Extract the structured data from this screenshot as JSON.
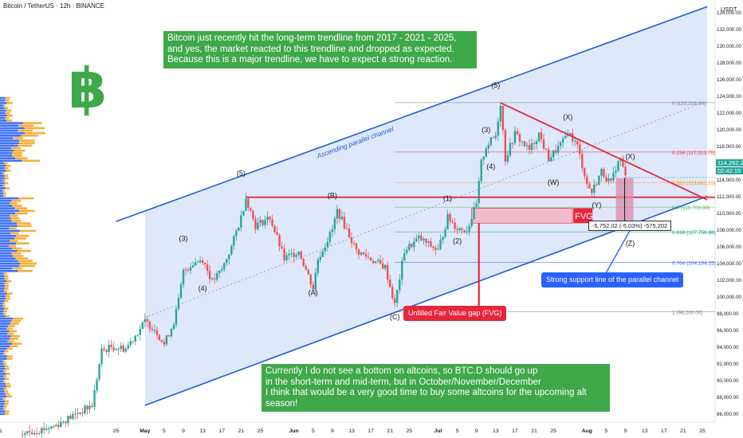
{
  "header": {
    "title": "Bitcoin / TetherUS · 12h · BINANCE",
    "currency": "USDT"
  },
  "price_tags": {
    "last": "114,262.22",
    "countdown": "02:42:15"
  },
  "notes": {
    "top": "Bitcoin just recently hit the long-term trendline from 2017 - 2021 - 2025, and yes, the market reacted to this trendline and dropped as expected. Because this is a major trendline, we have to expect a strong reaction.",
    "bottom_lines": [
      "Currently I do not see a bottom on altcoins, so BTC.D should go up",
      "in the short-term and mid-term, but in October/November/December",
      "I think that would be a very good time to buy some altcoins for the upcoming alt season!"
    ],
    "support": "Strong support line of the parallel channel",
    "fvg_callout": "Unfilled Fair Value gap (FVG)"
  },
  "ruler_label": "-5,752.02 (-5.03%) -575,202",
  "colors": {
    "up": "#26a69a",
    "down": "#ef5350",
    "channel": "#1e5fd6",
    "channel_fill": "#dbe6fb",
    "note_green": "#3fa84a",
    "red_line": "#e6263c",
    "fvg_fill": "#f3b5c3",
    "volume_orange": "#f5a623",
    "volume_blue": "#2962ff",
    "btc_logo": "#3fa84a"
  },
  "chart_data": {
    "type": "candlestick",
    "title": "Bitcoin / TetherUS · 12h · BINANCE",
    "ylabel": "USDT",
    "ylim": [
      85000,
      135500
    ],
    "y_ticks": [
      86000,
      88000,
      90000,
      92000,
      94000,
      96000,
      98000,
      100000,
      102000,
      104000,
      106000,
      108000,
      110000,
      112000,
      114000,
      116000,
      118000,
      120000,
      122000,
      124000,
      126000,
      128000,
      130000,
      132000,
      134000
    ],
    "y_tick_labels": [
      "86,000.00",
      "88,000.00",
      "90,000.00",
      "92,000.00",
      "94,000.00",
      "96,000.00",
      "98,000.00",
      "100,000.00",
      "102,000.00",
      "104,000.00",
      "106,000.00",
      "108,000.00",
      "110,000.00",
      "112,000.00",
      "114,000.00",
      "116,000.00",
      "118,000.00",
      "120,000.00",
      "122,000.00",
      "124,000.00",
      "126,000.00",
      "128,000.00",
      "130,000.00",
      "132,000.00",
      "134,000.00"
    ],
    "x_range": [
      "2025-04-01",
      "2025-08-26"
    ],
    "x_ticks": [
      {
        "date": "2025-04-01",
        "label": "1"
      },
      {
        "date": "2025-04-25",
        "label": "25"
      },
      {
        "date": "2025-05-01",
        "label": "May"
      },
      {
        "date": "2025-05-05",
        "label": "5"
      },
      {
        "date": "2025-05-09",
        "label": "9"
      },
      {
        "date": "2025-05-13",
        "label": "13"
      },
      {
        "date": "2025-05-17",
        "label": "17"
      },
      {
        "date": "2025-05-21",
        "label": "21"
      },
      {
        "date": "2025-05-25",
        "label": "25"
      },
      {
        "date": "2025-06-01",
        "label": "Jun"
      },
      {
        "date": "2025-06-05",
        "label": "5"
      },
      {
        "date": "2025-06-09",
        "label": "9"
      },
      {
        "date": "2025-06-13",
        "label": "13"
      },
      {
        "date": "2025-06-17",
        "label": "17"
      },
      {
        "date": "2025-06-21",
        "label": "21"
      },
      {
        "date": "2025-06-25",
        "label": "25"
      },
      {
        "date": "2025-07-01",
        "label": "Jul"
      },
      {
        "date": "2025-07-05",
        "label": "5"
      },
      {
        "date": "2025-07-09",
        "label": "9"
      },
      {
        "date": "2025-07-13",
        "label": "13"
      },
      {
        "date": "2025-07-17",
        "label": "17"
      },
      {
        "date": "2025-07-21",
        "label": "21"
      },
      {
        "date": "2025-07-25",
        "label": "25"
      },
      {
        "date": "2025-08-01",
        "label": "Aug"
      },
      {
        "date": "2025-08-05",
        "label": "5"
      },
      {
        "date": "2025-08-09",
        "label": "9"
      },
      {
        "date": "2025-08-13",
        "label": "13"
      },
      {
        "date": "2025-08-17",
        "label": "17"
      },
      {
        "date": "2025-08-21",
        "label": "21"
      },
      {
        "date": "2025-08-25",
        "label": "25"
      }
    ],
    "price_path": [
      {
        "date": "2025-04-05",
        "price": 83500
      },
      {
        "date": "2025-04-12",
        "price": 84500
      },
      {
        "date": "2025-04-20",
        "price": 87000
      },
      {
        "date": "2025-04-22",
        "price": 93500
      },
      {
        "date": "2025-04-24",
        "price": 94000
      },
      {
        "date": "2025-04-27",
        "price": 93800
      },
      {
        "date": "2025-05-01",
        "price": 97000
      },
      {
        "date": "2025-05-03",
        "price": 96200
      },
      {
        "date": "2025-05-05",
        "price": 94300
      },
      {
        "date": "2025-05-07",
        "price": 97000
      },
      {
        "date": "2025-05-08",
        "price": 99500
      },
      {
        "date": "2025-05-09",
        "price": 103000
      },
      {
        "date": "2025-05-11",
        "price": 104000
      },
      {
        "date": "2025-05-13",
        "price": 104500
      },
      {
        "date": "2025-05-15",
        "price": 101800
      },
      {
        "date": "2025-05-17",
        "price": 103200
      },
      {
        "date": "2025-05-19",
        "price": 106000
      },
      {
        "date": "2025-05-21",
        "price": 109500
      },
      {
        "date": "2025-05-22",
        "price": 111900
      },
      {
        "date": "2025-05-24",
        "price": 108500
      },
      {
        "date": "2025-05-27",
        "price": 109500
      },
      {
        "date": "2025-05-30",
        "price": 104500
      },
      {
        "date": "2025-06-02",
        "price": 105500
      },
      {
        "date": "2025-06-05",
        "price": 101000
      },
      {
        "date": "2025-06-06",
        "price": 104500
      },
      {
        "date": "2025-06-09",
        "price": 108000
      },
      {
        "date": "2025-06-10",
        "price": 110300
      },
      {
        "date": "2025-06-12",
        "price": 108000
      },
      {
        "date": "2025-06-14",
        "price": 105500
      },
      {
        "date": "2025-06-17",
        "price": 104500
      },
      {
        "date": "2025-06-20",
        "price": 103500
      },
      {
        "date": "2025-06-22",
        "price": 99000
      },
      {
        "date": "2025-06-24",
        "price": 105500
      },
      {
        "date": "2025-06-27",
        "price": 107000
      },
      {
        "date": "2025-07-01",
        "price": 105500
      },
      {
        "date": "2025-07-03",
        "price": 109500
      },
      {
        "date": "2025-07-05",
        "price": 108200
      },
      {
        "date": "2025-07-07",
        "price": 108000
      },
      {
        "date": "2025-07-09",
        "price": 111000
      },
      {
        "date": "2025-07-10",
        "price": 116000
      },
      {
        "date": "2025-07-11",
        "price": 118000
      },
      {
        "date": "2025-07-13",
        "price": 119300
      },
      {
        "date": "2025-07-14",
        "price": 123200
      },
      {
        "date": "2025-07-15",
        "price": 116500
      },
      {
        "date": "2025-07-17",
        "price": 119500
      },
      {
        "date": "2025-07-20",
        "price": 117500
      },
      {
        "date": "2025-07-22",
        "price": 119500
      },
      {
        "date": "2025-07-24",
        "price": 116500
      },
      {
        "date": "2025-07-27",
        "price": 118500
      },
      {
        "date": "2025-07-28",
        "price": 119800
      },
      {
        "date": "2025-07-30",
        "price": 118000
      },
      {
        "date": "2025-08-01",
        "price": 113500
      },
      {
        "date": "2025-08-02",
        "price": 112500
      },
      {
        "date": "2025-08-04",
        "price": 115000
      },
      {
        "date": "2025-08-06",
        "price": 113500
      },
      {
        "date": "2025-08-07",
        "price": 115500
      },
      {
        "date": "2025-08-08",
        "price": 116500
      },
      {
        "date": "2025-08-09",
        "price": 114262
      }
    ],
    "channel": {
      "upper": [
        {
          "date": "2025-04-25",
          "price": 109000
        },
        {
          "date": "2025-08-26",
          "price": 134700
        }
      ],
      "lower": [
        {
          "date": "2025-05-01",
          "price": 87000
        },
        {
          "date": "2025-08-26",
          "price": 112000
        }
      ],
      "mid": [
        {
          "date": "2025-05-01",
          "price": 97500
        },
        {
          "date": "2025-08-26",
          "price": 123400
        }
      ],
      "label": "Ascending parallel channel"
    },
    "horizontal_level": {
      "price": 111900,
      "from": "2025-05-22",
      "to": "2025-08-26"
    },
    "descending_trendline": [
      {
        "date": "2025-07-14",
        "price": 123200
      },
      {
        "date": "2025-08-26",
        "price": 111600
      }
    ],
    "fvg": {
      "low": 108800,
      "high": 110600,
      "from": "2025-07-08",
      "to": "2025-07-29",
      "label": "FVG"
    },
    "fib_levels": [
      {
        "ratio": "0",
        "label": "0 (123,218.00)",
        "price": 123218
      },
      {
        "ratio": "0.236",
        "label": "0.236 (117,313.75)",
        "price": 117313.75
      },
      {
        "ratio": "0.382",
        "label": "0.382 (113,661.15)",
        "price": 113661.15
      },
      {
        "ratio": "0.5",
        "label": "0.5 (110,709.00)",
        "price": 110709
      },
      {
        "ratio": "0.618",
        "label": "0.618 (107,756.88)",
        "price": 107756.88
      },
      {
        "ratio": "0.764",
        "label": "0.764 (104,104.25)",
        "price": 104104.25
      },
      {
        "ratio": "1",
        "label": "1 (98,200.00)",
        "price": 98200
      }
    ],
    "wave_labels": [
      {
        "text": "(3)",
        "date": "2025-05-09",
        "price": 106700
      },
      {
        "text": "(4)",
        "date": "2025-05-13",
        "price": 100700
      },
      {
        "text": "(5)",
        "date": "2025-05-21",
        "price": 114500
      },
      {
        "text": "(B)",
        "date": "2025-06-09",
        "price": 111800
      },
      {
        "text": "(A)",
        "date": "2025-06-05",
        "price": 100200
      },
      {
        "text": "(C)",
        "date": "2025-06-22",
        "price": 97300
      },
      {
        "text": "(1)",
        "date": "2025-07-03",
        "price": 111500
      },
      {
        "text": "(2)",
        "date": "2025-07-05",
        "price": 106400
      },
      {
        "text": "(3)",
        "date": "2025-07-11",
        "price": 119700
      },
      {
        "text": "(4)",
        "date": "2025-07-12",
        "price": 115300
      },
      {
        "text": "(5)",
        "date": "2025-07-13",
        "price": 125000
      },
      {
        "text": "(X)",
        "date": "2025-07-28",
        "price": 121200
      },
      {
        "text": "(W)",
        "date": "2025-07-25",
        "price": 113400
      },
      {
        "text": "(Y)",
        "date": "2025-08-03",
        "price": 110700
      },
      {
        "text": "(X)",
        "date": "2025-08-10",
        "price": 116500
      },
      {
        "text": "(Z)",
        "date": "2025-08-10",
        "price": 106100
      }
    ],
    "projection": {
      "date": "2025-08-10",
      "from": 114200,
      "to": 108450
    }
  }
}
